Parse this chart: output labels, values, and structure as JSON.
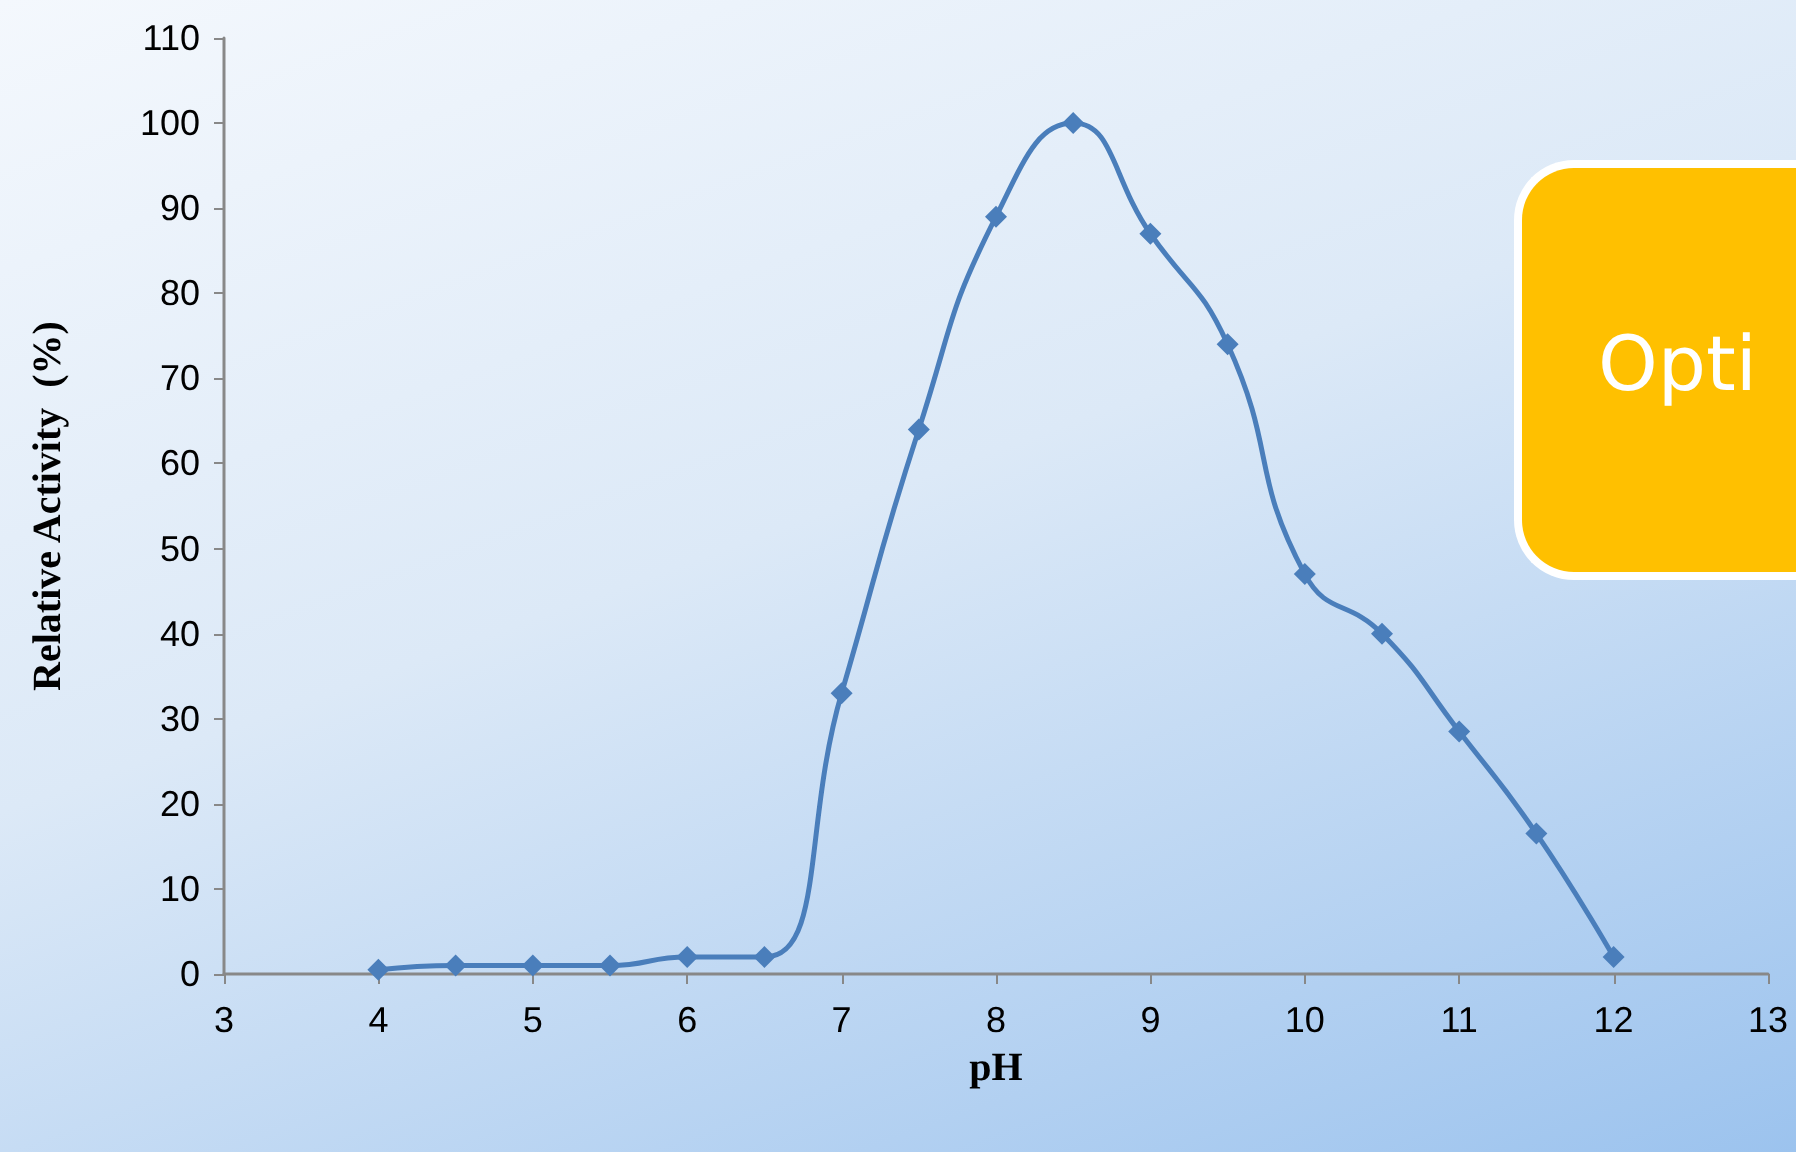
{
  "chart_data": {
    "type": "line",
    "xlabel": "pH",
    "ylabel": "Relative Activity  (%)",
    "x": [
      4,
      4.5,
      5,
      5.5,
      6,
      6.5,
      7,
      7.5,
      8,
      8.5,
      9,
      9.5,
      10,
      10.5,
      11,
      11.5,
      12
    ],
    "series": [
      {
        "color": "#4a7ebb",
        "values": [
          0.5,
          1,
          1,
          1,
          2,
          2,
          33,
          64,
          89,
          100,
          87,
          74,
          47,
          40,
          28.5,
          16.5,
          2
        ]
      }
    ],
    "xlim": [
      3,
      13
    ],
    "xticks": [
      3,
      4,
      5,
      6,
      7,
      8,
      9,
      10,
      11,
      12,
      13
    ],
    "ylim": [
      0,
      110
    ],
    "yticks": [
      0,
      10,
      20,
      30,
      40,
      50,
      60,
      70,
      80,
      90,
      100,
      110
    ],
    "marker": "diamond",
    "line_style": "solid",
    "grid": false,
    "annotations": [
      "Opti"
    ]
  }
}
